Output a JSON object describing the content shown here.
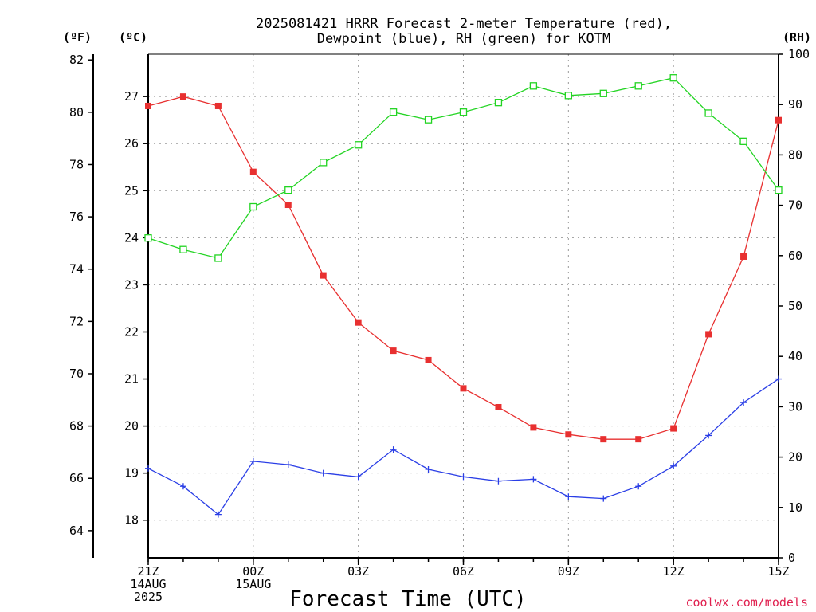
{
  "header": {
    "title_line1": "2025081421 HRRR Forecast 2-meter Temperature (red),",
    "title_line2": "Dewpoint (blue), RH (green) for KOTM"
  },
  "units": {
    "fahrenheit": "(ºF)",
    "celsius": "(ºC)",
    "rh": "(RH)"
  },
  "footer": {
    "xlabel": "Forecast Time (UTC)",
    "credit": "coolwx.com/models"
  },
  "colors": {
    "temperature": "#e83030",
    "dewpoint": "#2a3ee6",
    "rh": "#22d422",
    "grid": "#9a9a9a"
  },
  "chart_data": {
    "type": "line",
    "title": "2025081421 HRRR Forecast 2-meter Temperature (red), Dewpoint (blue), RH (green) for KOTM",
    "xlabel": "Forecast Time (UTC)",
    "x_hours": [
      0,
      1,
      2,
      3,
      4,
      5,
      6,
      7,
      8,
      9,
      10,
      11,
      12,
      13,
      14,
      15,
      16,
      17,
      18
    ],
    "x_range": [
      0,
      18
    ],
    "x_ticks": [
      {
        "hour": 0,
        "lines": [
          "21Z",
          "14AUG",
          "2025"
        ]
      },
      {
        "hour": 3,
        "lines": [
          "00Z",
          "15AUG"
        ]
      },
      {
        "hour": 6,
        "lines": [
          "03Z"
        ]
      },
      {
        "hour": 9,
        "lines": [
          "06Z"
        ]
      },
      {
        "hour": 12,
        "lines": [
          "09Z"
        ]
      },
      {
        "hour": 15,
        "lines": [
          "12Z"
        ]
      },
      {
        "hour": 18,
        "lines": [
          "15Z"
        ]
      }
    ],
    "y_celsius": {
      "range": [
        17.2,
        27.9
      ],
      "ticks": [
        18,
        19,
        20,
        21,
        22,
        23,
        24,
        25,
        26,
        27
      ]
    },
    "y_fahrenheit": {
      "range": [
        62.96,
        82.22
      ],
      "ticks": [
        64,
        66,
        68,
        70,
        72,
        74,
        76,
        78,
        80,
        82
      ]
    },
    "y_rh": {
      "range": [
        0,
        100
      ],
      "ticks": [
        0,
        10,
        20,
        30,
        40,
        50,
        60,
        70,
        80,
        90,
        100
      ]
    },
    "grid": true,
    "series": [
      {
        "key": "temperature",
        "axis": "celsius",
        "marker": "filled-square",
        "values": [
          26.8,
          27.0,
          26.8,
          25.4,
          24.7,
          23.2,
          22.2,
          21.6,
          21.4,
          20.8,
          20.4,
          19.97,
          19.82,
          19.72,
          19.72,
          19.95,
          21.95,
          23.6,
          26.5
        ]
      },
      {
        "key": "dewpoint",
        "axis": "celsius",
        "marker": "plus",
        "values": [
          19.1,
          18.72,
          18.12,
          19.25,
          19.18,
          19.0,
          18.92,
          19.5,
          19.08,
          18.92,
          18.83,
          18.87,
          18.5,
          18.46,
          18.72,
          19.15,
          19.8,
          20.5,
          21.0
        ]
      },
      {
        "key": "rh",
        "axis": "rh",
        "marker": "open-square",
        "values": [
          63.5,
          61.2,
          59.5,
          69.7,
          73.0,
          78.5,
          82.0,
          88.5,
          87.0,
          88.5,
          90.4,
          93.7,
          91.8,
          92.2,
          93.7,
          95.3,
          88.3,
          82.7,
          73.0
        ]
      }
    ]
  }
}
